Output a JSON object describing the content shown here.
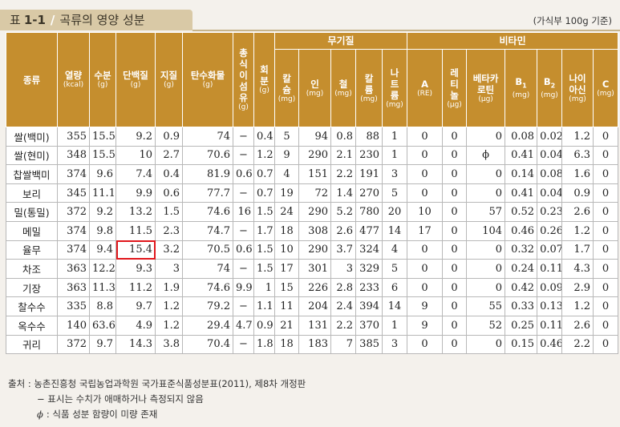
{
  "title": {
    "label": "표",
    "number": "1-1",
    "separator": "/",
    "text": "곡류의 영양 성분"
  },
  "unit_note": "(가식부 100g 기준)",
  "headers": {
    "food": "종류",
    "energy": {
      "name": "열량",
      "unit": "(kcal)"
    },
    "water": {
      "name": "수분",
      "unit": "(g)"
    },
    "protein": {
      "name": "단백질",
      "unit": "(g)"
    },
    "fat": {
      "name": "지질",
      "unit": "(g)"
    },
    "carb": {
      "name": "탄수화물",
      "unit": "(g)"
    },
    "fiber": {
      "name": "총식이섬유",
      "unit": "(g)"
    },
    "ash": {
      "name": "회분",
      "unit": "(g)"
    },
    "minerals_group": "무기질",
    "calcium": {
      "name": "칼슘",
      "unit": "(mg)"
    },
    "phosphorus": {
      "name": "인",
      "unit": "(mg)"
    },
    "iron": {
      "name": "철",
      "unit": "(mg)"
    },
    "potassium": {
      "name": "칼륨",
      "unit": "(mg)"
    },
    "sodium": {
      "name": "나트륨",
      "unit": "(mg)"
    },
    "vitamins_group": "비타민",
    "vit_a": {
      "name": "A",
      "unit": "(RE)"
    },
    "retinol": {
      "name": "레티놀",
      "unit": "(μg)"
    },
    "beta_carotene": {
      "name": "베타카로틴",
      "unit": "(μg)"
    },
    "b1": {
      "name": "B",
      "sub": "1",
      "unit": "(mg)"
    },
    "b2": {
      "name": "B",
      "sub": "2",
      "unit": "(mg)"
    },
    "niacin": {
      "name": "나이아신",
      "unit": "(mg)"
    },
    "vit_c": {
      "name": "C",
      "unit": "(mg)"
    }
  },
  "rows": [
    {
      "name": "쌀(백미)",
      "values": [
        "355",
        "15.5",
        "9.2",
        "0.9",
        "74",
        "−",
        "0.4",
        "5",
        "94",
        "0.8",
        "88",
        "1",
        "0",
        "0",
        "0",
        "0.08",
        "0.02",
        "1.2",
        "0"
      ]
    },
    {
      "name": "쌀(현미)",
      "values": [
        "348",
        "15.5",
        "10",
        "2.7",
        "70.6",
        "−",
        "1.2",
        "9",
        "290",
        "2.1",
        "230",
        "1",
        "0",
        "0",
        "ϕ",
        "0.41",
        "0.04",
        "6.3",
        "0"
      ]
    },
    {
      "name": "찹쌀백미",
      "values": [
        "374",
        "9.6",
        "7.4",
        "0.4",
        "81.9",
        "0.6",
        "0.7",
        "4",
        "151",
        "2.2",
        "191",
        "3",
        "0",
        "0",
        "0",
        "0.14",
        "0.08",
        "1.6",
        "0"
      ]
    },
    {
      "name": "보리",
      "values": [
        "345",
        "11.1",
        "9.9",
        "0.6",
        "77.7",
        "−",
        "0.7",
        "19",
        "72",
        "1.4",
        "270",
        "5",
        "0",
        "0",
        "0",
        "0.41",
        "0.04",
        "0.9",
        "0"
      ]
    },
    {
      "name": "밀(통밀)",
      "values": [
        "372",
        "9.2",
        "13.2",
        "1.5",
        "74.6",
        "16",
        "1.5",
        "24",
        "290",
        "5.2",
        "780",
        "20",
        "10",
        "0",
        "57",
        "0.52",
        "0.23",
        "2.6",
        "0"
      ]
    },
    {
      "name": "메밀",
      "values": [
        "374",
        "9.8",
        "11.5",
        "2.3",
        "74.7",
        "−",
        "1.7",
        "18",
        "308",
        "2.6",
        "477",
        "14",
        "17",
        "0",
        "104",
        "0.46",
        "0.26",
        "1.2",
        "0"
      ]
    },
    {
      "name": "율무",
      "values": [
        "374",
        "9.4",
        "15.4",
        "3.2",
        "70.5",
        "0.6",
        "1.5",
        "10",
        "290",
        "3.7",
        "324",
        "4",
        "0",
        "0",
        "0",
        "0.32",
        "0.07",
        "1.7",
        "0"
      ]
    },
    {
      "name": "차조",
      "values": [
        "363",
        "12.2",
        "9.3",
        "3",
        "74",
        "−",
        "1.5",
        "17",
        "301",
        "3",
        "329",
        "5",
        "0",
        "0",
        "0",
        "0.24",
        "0.11",
        "4.3",
        "0"
      ]
    },
    {
      "name": "기장",
      "values": [
        "363",
        "11.3",
        "11.2",
        "1.9",
        "74.6",
        "9.9",
        "1",
        "15",
        "226",
        "2.8",
        "233",
        "6",
        "0",
        "0",
        "0",
        "0.42",
        "0.09",
        "2.9",
        "0"
      ]
    },
    {
      "name": "찰수수",
      "values": [
        "335",
        "8.8",
        "9.7",
        "1.2",
        "79.2",
        "−",
        "1.1",
        "11",
        "204",
        "2.4",
        "394",
        "14",
        "9",
        "0",
        "55",
        "0.33",
        "0.13",
        "1.2",
        "0"
      ]
    },
    {
      "name": "옥수수",
      "values": [
        "140",
        "63.6",
        "4.9",
        "1.2",
        "29.4",
        "4.7",
        "0.9",
        "21",
        "131",
        "2.2",
        "370",
        "1",
        "9",
        "0",
        "52",
        "0.25",
        "0.11",
        "2.6",
        "0"
      ]
    },
    {
      "name": "귀리",
      "values": [
        "372",
        "9.7",
        "14.3",
        "3.8",
        "70.4",
        "−",
        "1.8",
        "18",
        "183",
        "7",
        "385",
        "3",
        "0",
        "0",
        "0",
        "0.15",
        "0.46",
        "2.2",
        "0"
      ]
    }
  ],
  "highlight": {
    "row": 6,
    "col": 2
  },
  "footnotes": {
    "source": "출처 : 농촌진흥청 국립농업과학원 국가표준식품성분표(2011), 제8차 개정판",
    "dash_note": "− 표시는 수치가 애매하거나 측정되지 않음",
    "phi_symbol": "ϕ",
    "phi_note": ": 식품 성분 함량이 미량 존재"
  },
  "colors": {
    "header": "#c58e2e",
    "title_bar": "#d9c9a6",
    "highlight": "#e0161b"
  }
}
